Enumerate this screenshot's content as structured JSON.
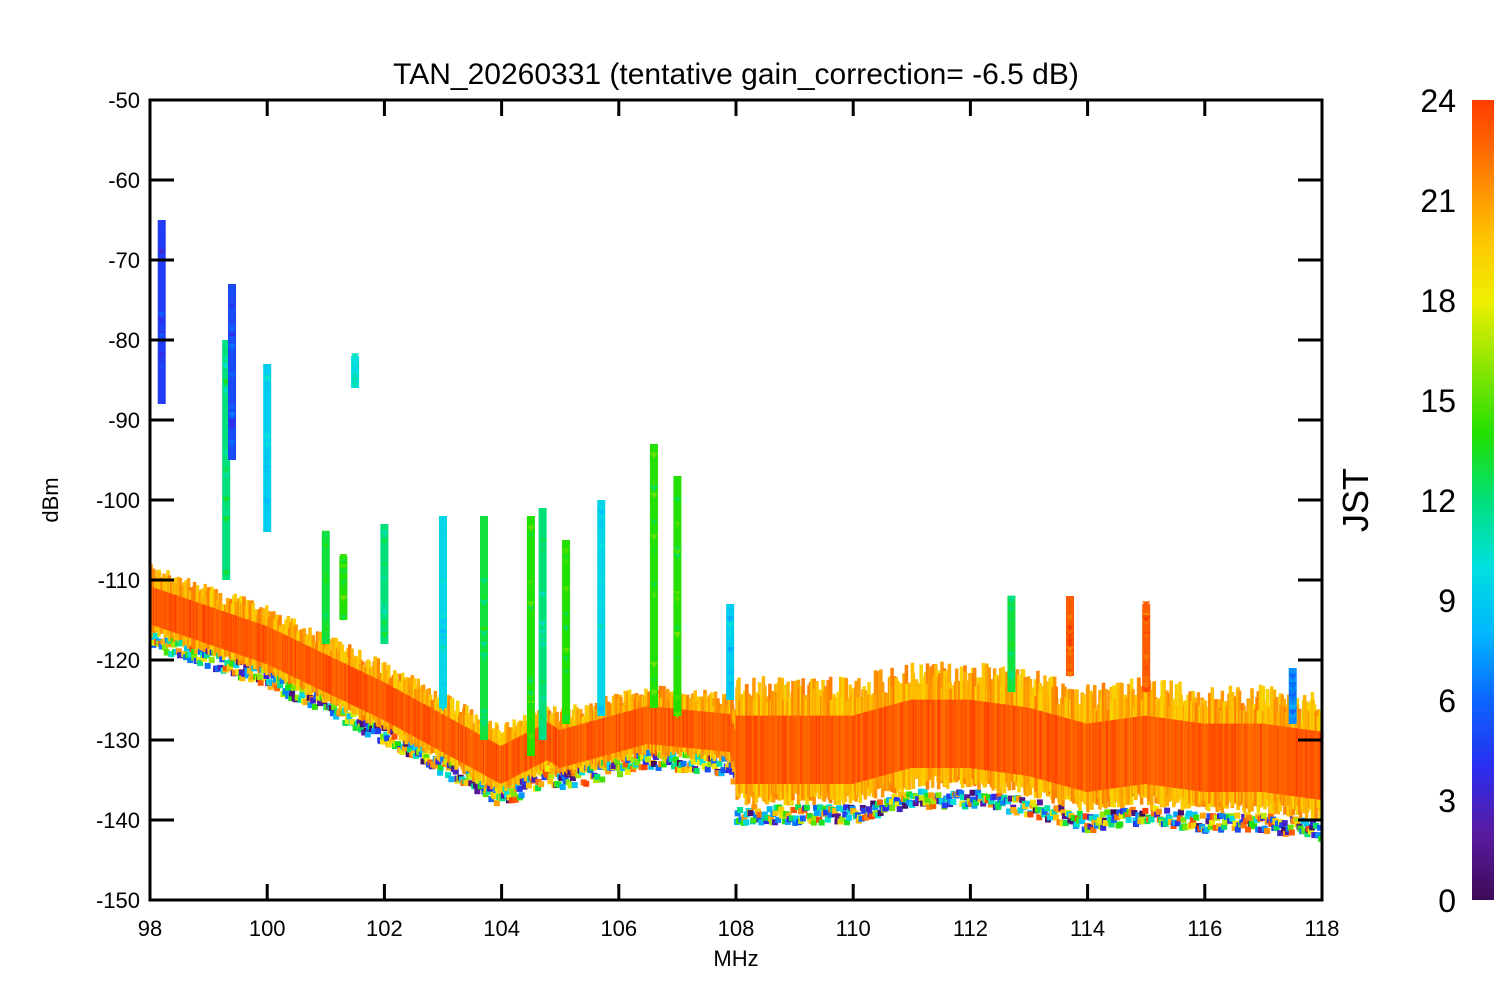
{
  "chart_data": {
    "type": "scatter",
    "title": "TAN_20260331 (tentative gain_correction= -6.5 dB)",
    "xlabel": "MHz",
    "ylabel": "dBm",
    "xlim": [
      98,
      118
    ],
    "ylim": [
      -150,
      -50
    ],
    "x_ticks": [
      "98",
      "100",
      "102",
      "104",
      "106",
      "108",
      "110",
      "112",
      "114",
      "116",
      "118"
    ],
    "y_ticks": [
      "-50",
      "-60",
      "-70",
      "-80",
      "-90",
      "-100",
      "-110",
      "-120",
      "-130",
      "-140",
      "-150"
    ],
    "colorbar": {
      "label": "JST",
      "range": [
        0,
        24
      ],
      "ticks": [
        "0",
        "3",
        "6",
        "9",
        "12",
        "15",
        "18",
        "21",
        "24"
      ],
      "colormap": [
        "#3d0a57",
        "#5a1aa0",
        "#2a2ef0",
        "#0a66ff",
        "#00b7ff",
        "#00e0e0",
        "#00e07a",
        "#22e000",
        "#8ce600",
        "#f0f000",
        "#ffc000",
        "#ff7a00",
        "#ff3c00"
      ]
    },
    "baseline_noise": {
      "x": [
        98,
        100,
        102,
        104,
        104.8,
        105,
        106,
        106.5,
        107.9,
        108,
        109,
        110,
        111,
        112,
        113,
        114,
        115,
        116,
        117,
        118
      ],
      "y": [
        -113,
        -118,
        -125,
        -133,
        -130,
        -131,
        -129,
        -128,
        -129,
        -131,
        -131,
        -131,
        -129,
        -129,
        -130,
        -132,
        -131,
        -132,
        -132,
        -133
      ]
    },
    "spikes": [
      {
        "x": 98.2,
        "ymin": -88,
        "ymax": -65,
        "jst": 4.5
      },
      {
        "x": 99.3,
        "ymin": -110,
        "ymax": -80,
        "jst": 12
      },
      {
        "x": 99.4,
        "ymin": -95,
        "ymax": -73,
        "jst": 5
      },
      {
        "x": 100.0,
        "ymin": -104,
        "ymax": -83,
        "jst": 9
      },
      {
        "x": 101.5,
        "ymin": -86,
        "ymax": -82,
        "jst": 10
      },
      {
        "x": 101.0,
        "ymin": -118,
        "ymax": -104,
        "jst": 13
      },
      {
        "x": 101.3,
        "ymin": -115,
        "ymax": -107,
        "jst": 14
      },
      {
        "x": 102.0,
        "ymin": -118,
        "ymax": -103,
        "jst": 12
      },
      {
        "x": 103.0,
        "ymin": -126,
        "ymax": -102,
        "jst": 9.5
      },
      {
        "x": 103.7,
        "ymin": -130,
        "ymax": -102,
        "jst": 13
      },
      {
        "x": 104.5,
        "ymin": -132,
        "ymax": -102,
        "jst": 14
      },
      {
        "x": 104.7,
        "ymin": -130,
        "ymax": -101,
        "jst": 12
      },
      {
        "x": 105.1,
        "ymin": -128,
        "ymax": -105,
        "jst": 14
      },
      {
        "x": 105.7,
        "ymin": -127,
        "ymax": -100,
        "jst": 9.5
      },
      {
        "x": 106.6,
        "ymin": -126,
        "ymax": -93,
        "jst": 14
      },
      {
        "x": 107.0,
        "ymin": -127,
        "ymax": -97,
        "jst": 14
      },
      {
        "x": 107.9,
        "ymin": -125,
        "ymax": -113,
        "jst": 9
      },
      {
        "x": 112.7,
        "ymin": -124,
        "ymax": -112,
        "jst": 13
      },
      {
        "x": 113.7,
        "ymin": -122,
        "ymax": -112,
        "jst": 23
      },
      {
        "x": 115.0,
        "ymin": -124,
        "ymax": -113,
        "jst": 23
      },
      {
        "x": 117.5,
        "ymin": -128,
        "ymax": -121,
        "jst": 7
      }
    ]
  }
}
